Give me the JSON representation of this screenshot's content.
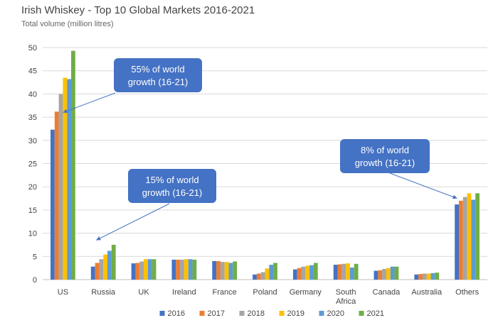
{
  "chart_data": {
    "type": "bar",
    "title": "Irish Whiskey - Top 10 Global Markets 2016-2021",
    "subtitle": "Total volume (million litres)",
    "categories": [
      "US",
      "Russia",
      "UK",
      "Ireland",
      "France",
      "Poland",
      "Germany",
      "South Africa",
      "Canada",
      "Australia",
      "Others"
    ],
    "series": [
      {
        "name": "2016",
        "color": "#4472C4",
        "values": [
          32.3,
          2.8,
          3.5,
          4.3,
          4.0,
          1.1,
          2.2,
          3.2,
          1.9,
          1.1,
          16.2
        ]
      },
      {
        "name": "2017",
        "color": "#ED7D31",
        "values": [
          36.2,
          3.6,
          3.6,
          4.3,
          4.0,
          1.3,
          2.5,
          3.3,
          2.0,
          1.2,
          17.0
        ]
      },
      {
        "name": "2018",
        "color": "#A5A5A5",
        "values": [
          40.0,
          4.4,
          3.9,
          4.3,
          3.8,
          1.6,
          2.8,
          3.4,
          2.3,
          1.3,
          17.8
        ]
      },
      {
        "name": "2019",
        "color": "#FFC000",
        "values": [
          43.5,
          5.4,
          4.4,
          4.4,
          3.8,
          2.4,
          3.0,
          3.5,
          2.5,
          1.3,
          18.6
        ]
      },
      {
        "name": "2020",
        "color": "#5B9BD5",
        "values": [
          43.2,
          6.2,
          4.4,
          4.4,
          3.6,
          3.2,
          3.1,
          2.6,
          2.8,
          1.4,
          17.2
        ]
      },
      {
        "name": "2021",
        "color": "#70AD47",
        "values": [
          49.3,
          7.5,
          4.4,
          4.3,
          3.9,
          3.6,
          3.6,
          3.4,
          2.8,
          1.5,
          18.6
        ]
      }
    ],
    "ylim": [
      0,
      50
    ],
    "yticks": [
      0,
      5,
      10,
      15,
      20,
      25,
      30,
      35,
      40,
      45,
      50
    ],
    "grid": true,
    "legend_position": "bottom",
    "annotations": [
      {
        "lines": [
          "55% of world",
          "growth (16-21)"
        ],
        "target_category": "US",
        "target_value": 36
      },
      {
        "lines": [
          "15% of world",
          "growth (16-21)"
        ],
        "target_category": "Russia",
        "target_value": 8.5
      },
      {
        "lines": [
          "8% of world",
          "growth (16-21)"
        ],
        "target_category": "Others",
        "target_value": 17.5
      }
    ],
    "annotation_color": "#4472C4"
  }
}
